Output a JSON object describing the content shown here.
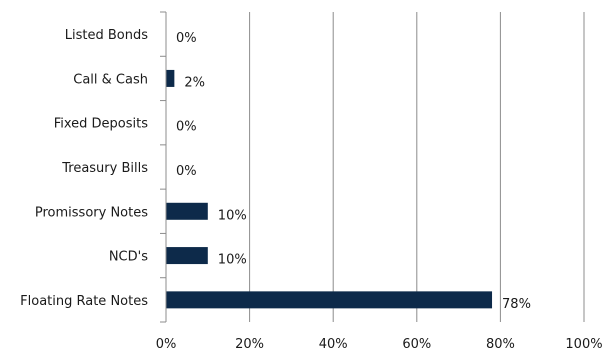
{
  "chart_data": {
    "type": "bar",
    "orientation": "horizontal",
    "categories": [
      "Listed Bonds",
      "Call & Cash",
      "Fixed Deposits",
      "Treasury Bills",
      "Promissory Notes",
      "NCD's",
      "Floating Rate  Notes"
    ],
    "values": [
      0,
      2,
      0,
      0,
      10,
      10,
      78
    ],
    "data_labels": [
      "0%",
      "2%",
      "0%",
      "0%",
      "10%",
      "10%",
      "78%"
    ],
    "x_ticks": [
      "0%",
      "20%",
      "40%",
      "60%",
      "80%",
      "100%"
    ],
    "xlim": [
      0,
      100
    ],
    "grid": "vertical",
    "legend": "none",
    "bar_color": "#0d2a4a",
    "title": "",
    "xlabel": "",
    "ylabel": ""
  }
}
